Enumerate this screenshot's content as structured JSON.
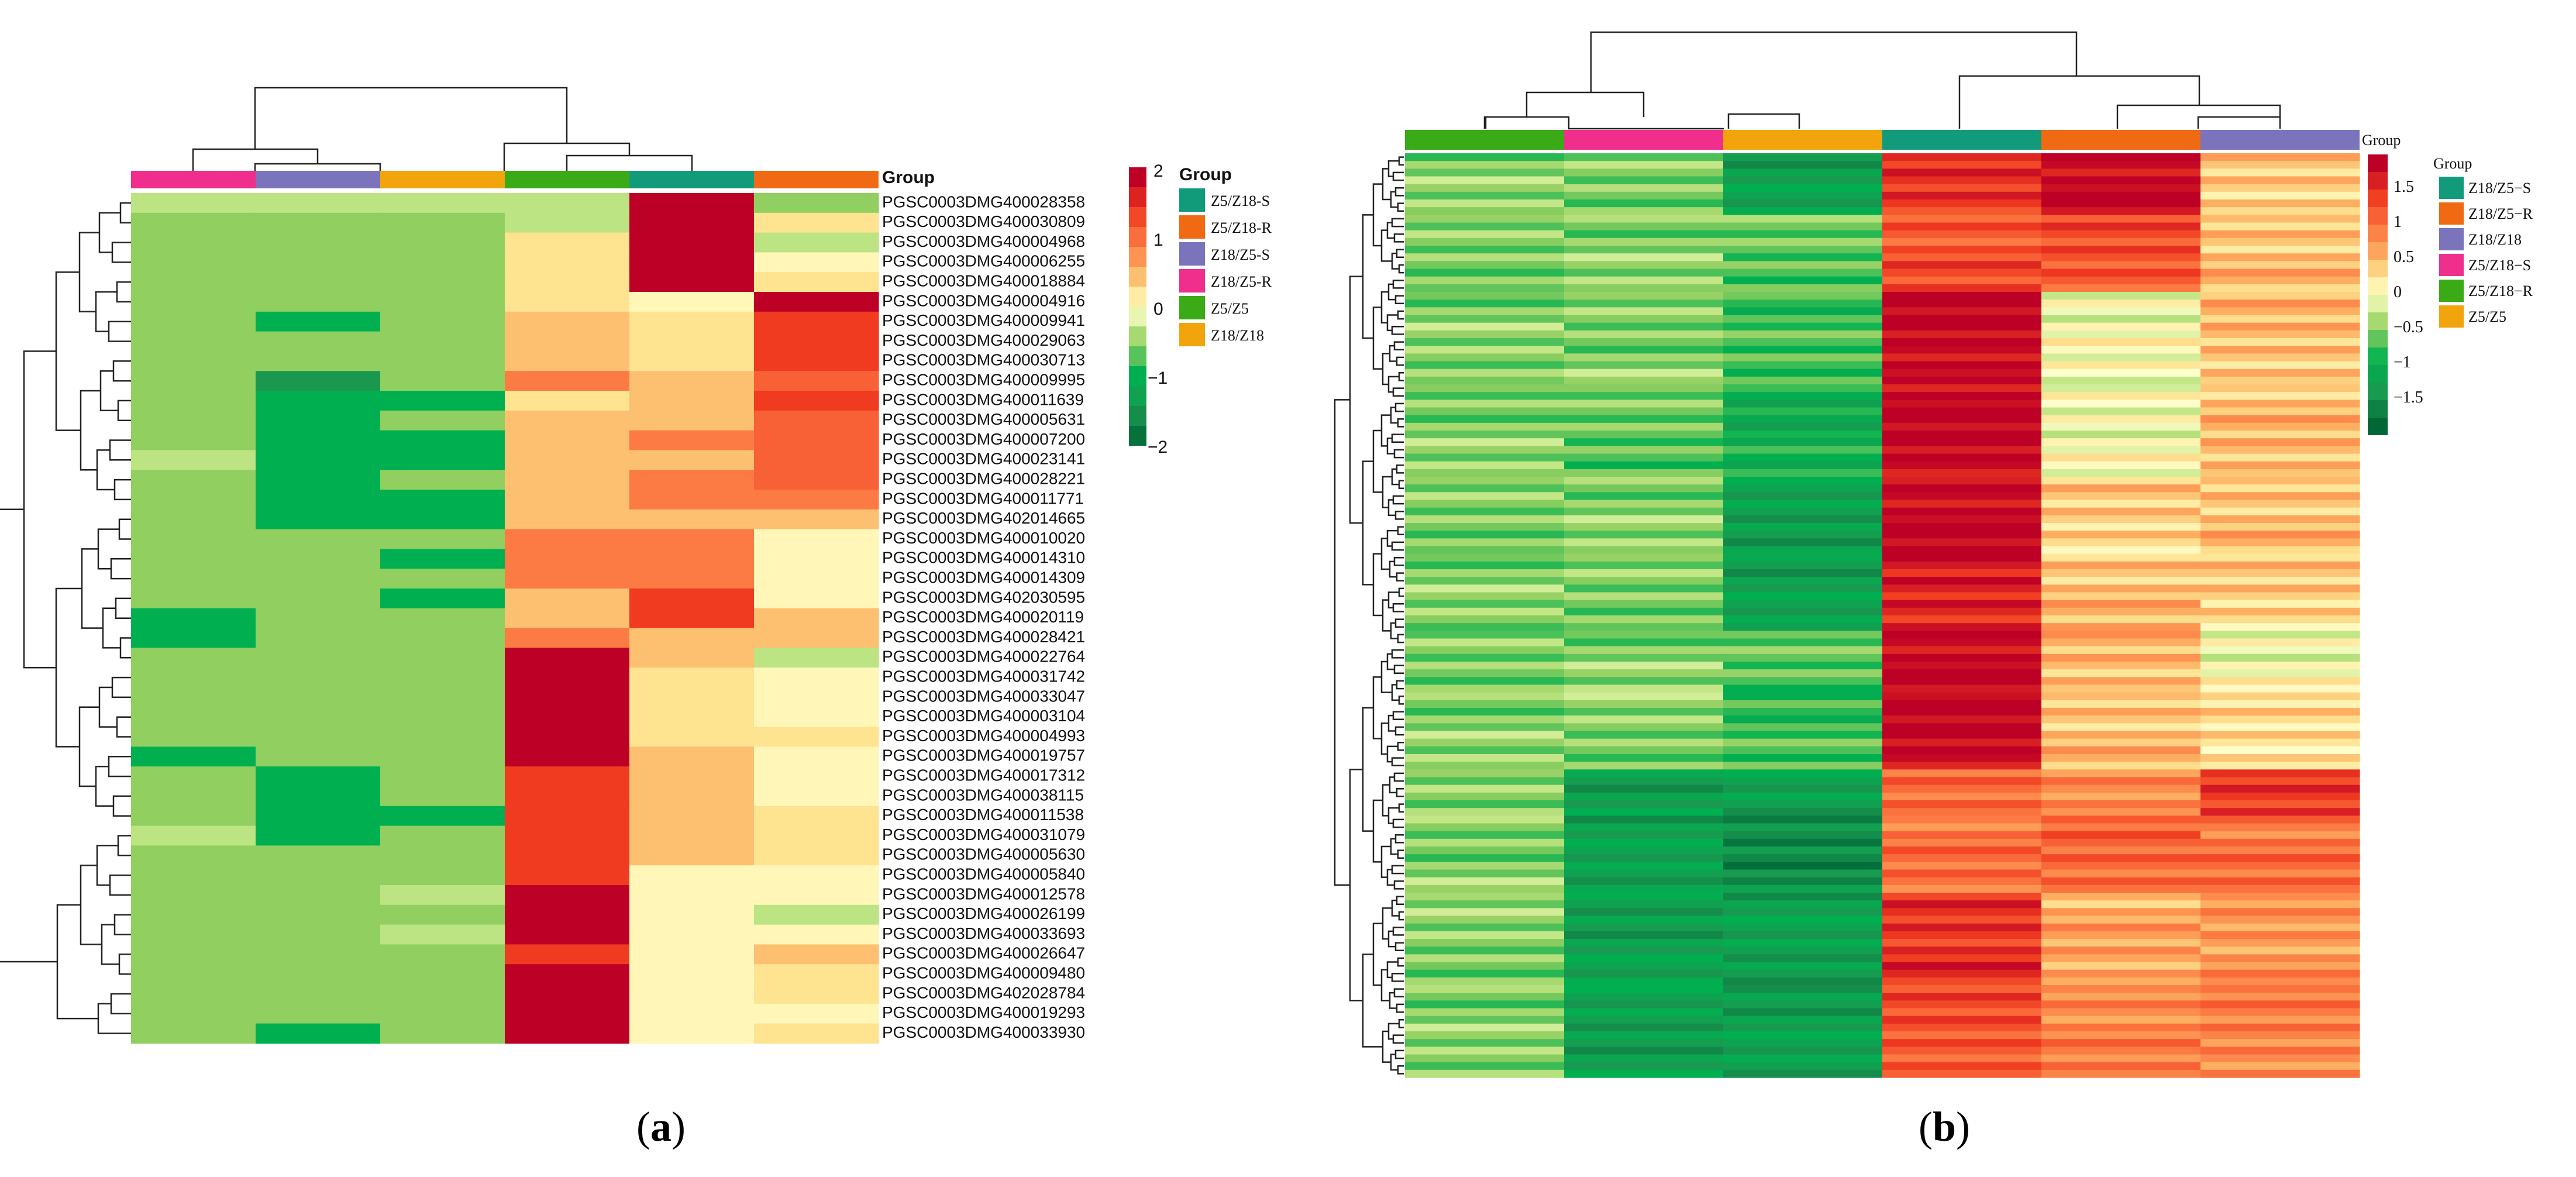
{
  "panel_a": {
    "label_open": "(",
    "label_letter": "a",
    "label_close": ")",
    "group_header": "Group",
    "column_order": [
      "Z18/Z5-R",
      "Z18/Z5-S",
      "Z18/Z18",
      "Z5/Z5",
      "Z5/Z18-S",
      "Z5/Z18-R"
    ],
    "legend_title": "Group",
    "legend": [
      {
        "label": "Z5/Z18-S",
        "color": "#129b7a"
      },
      {
        "label": "Z5/Z18-R",
        "color": "#ef6a13"
      },
      {
        "label": "Z18/Z5-S",
        "color": "#7b73bb"
      },
      {
        "label": "Z18/Z5-R",
        "color": "#ef2f8b"
      },
      {
        "label": "Z5/Z5",
        "color": "#3aaa16"
      },
      {
        "label": "Z18/Z18",
        "color": "#f2a40d"
      }
    ],
    "scale_ticks": [
      "2",
      "1",
      "0",
      "−1",
      "−2"
    ]
  },
  "panel_b": {
    "label_open": "(",
    "label_letter": "b",
    "label_close": ")",
    "group_header": "Group",
    "column_order": [
      "Z5/Z18-R",
      "Z5/Z18-S",
      "Z5/Z5",
      "Z18/Z5-S",
      "Z18/Z5-R",
      "Z18/Z18"
    ],
    "legend_title": "Group",
    "legend": [
      {
        "label": "Z18/Z5−S",
        "color": "#129b7a"
      },
      {
        "label": "Z18/Z5−R",
        "color": "#ef6a13"
      },
      {
        "label": "Z18/Z18",
        "color": "#7b73bb"
      },
      {
        "label": "Z5/Z18−S",
        "color": "#ef2f8b"
      },
      {
        "label": "Z5/Z18−R",
        "color": "#3aaa16"
      },
      {
        "label": "Z5/Z5",
        "color": "#f2a40d"
      }
    ],
    "scale_ticks": [
      "1.5",
      "1",
      "0.5",
      "0",
      "−0.5",
      "−1",
      "−1.5"
    ]
  },
  "chart_data": [
    {
      "type": "heatmap",
      "title": "",
      "columns": [
        "Z18/Z5-R",
        "Z18/Z5-S",
        "Z18/Z18",
        "Z5/Z5",
        "Z5/Z18-S",
        "Z5/Z18-R"
      ],
      "rows": [
        "PGSC0003DMG400028358",
        "PGSC0003DMG400030809",
        "PGSC0003DMG400004968",
        "PGSC0003DMG400006255",
        "PGSC0003DMG400018884",
        "PGSC0003DMG400004916",
        "PGSC0003DMG400009941",
        "PGSC0003DMG400029063",
        "PGSC0003DMG400030713",
        "PGSC0003DMG400009995",
        "PGSC0003DMG400011639",
        "PGSC0003DMG400005631",
        "PGSC0003DMG400007200",
        "PGSC0003DMG400023141",
        "PGSC0003DMG400028221",
        "PGSC0003DMG400011771",
        "PGSC0003DMG402014665",
        "PGSC0003DMG400010020",
        "PGSC0003DMG400014310",
        "PGSC0003DMG400014309",
        "PGSC0003DMG402030595",
        "PGSC0003DMG400020119",
        "PGSC0003DMG400028421",
        "PGSC0003DMG400022764",
        "PGSC0003DMG400031742",
        "PGSC0003DMG400033047",
        "PGSC0003DMG400003104",
        "PGSC0003DMG400004993",
        "PGSC0003DMG400019757",
        "PGSC0003DMG400017312",
        "PGSC0003DMG400038115",
        "PGSC0003DMG400011538",
        "PGSC0003DMG400031079",
        "PGSC0003DMG400005630",
        "PGSC0003DMG400005840",
        "PGSC0003DMG400012578",
        "PGSC0003DMG400026199",
        "PGSC0003DMG400033693",
        "PGSC0003DMG400026647",
        "PGSC0003DMG400009480",
        "PGSC0003DMG402028784",
        "PGSC0003DMG400019293",
        "PGSC0003DMG400033930"
      ],
      "values": [
        [
          -0.3,
          -0.3,
          -0.3,
          -0.3,
          2,
          -0.5
        ],
        [
          -0.5,
          -0.5,
          -0.5,
          -0.3,
          2,
          0.3
        ],
        [
          -0.5,
          -0.5,
          -0.5,
          0.3,
          2,
          -0.3
        ],
        [
          -0.5,
          -0.5,
          -0.5,
          0.3,
          2,
          0.1
        ],
        [
          -0.5,
          -0.5,
          -0.5,
          0.3,
          2,
          0.3
        ],
        [
          -0.5,
          -0.5,
          -0.5,
          0.3,
          0.1,
          2
        ],
        [
          -0.5,
          -1,
          -0.5,
          0.5,
          0.3,
          1.5
        ],
        [
          -0.5,
          -0.5,
          -0.5,
          0.5,
          0.3,
          1.5
        ],
        [
          -0.5,
          -0.5,
          -0.5,
          0.5,
          0.3,
          1.5
        ],
        [
          -0.5,
          -1.5,
          -0.5,
          1,
          0.5,
          1.2
        ],
        [
          -0.5,
          -1,
          -1,
          0.3,
          0.5,
          1.5
        ],
        [
          -0.5,
          -1,
          -0.5,
          0.5,
          0.5,
          1.2
        ],
        [
          -0.5,
          -1,
          -1,
          0.5,
          1,
          1.2
        ],
        [
          -0.3,
          -1,
          -1,
          0.5,
          0.5,
          1.2
        ],
        [
          -0.5,
          -1,
          -0.5,
          0.5,
          1,
          1.2
        ],
        [
          -0.5,
          -1,
          -1,
          0.5,
          1,
          1
        ],
        [
          -0.5,
          -1,
          -1,
          0.5,
          0.5,
          0.5
        ],
        [
          -0.5,
          -0.5,
          -0.5,
          1,
          1,
          0.1
        ],
        [
          -0.5,
          -0.5,
          -1,
          1,
          1,
          0.1
        ],
        [
          -0.5,
          -0.5,
          -0.5,
          1,
          1,
          0.1
        ],
        [
          -0.5,
          -0.5,
          -1,
          0.5,
          1.5,
          0.1
        ],
        [
          -1,
          -0.5,
          -0.5,
          0.5,
          1.5,
          0.5
        ],
        [
          -1,
          -0.5,
          -0.5,
          1,
          0.5,
          0.5
        ],
        [
          -0.5,
          -0.5,
          -0.5,
          2,
          0.5,
          -0.3
        ],
        [
          -0.5,
          -0.5,
          -0.5,
          2,
          0.3,
          0.1
        ],
        [
          -0.5,
          -0.5,
          -0.5,
          2,
          0.3,
          0.1
        ],
        [
          -0.5,
          -0.5,
          -0.5,
          2,
          0.3,
          0.1
        ],
        [
          -0.5,
          -0.5,
          -0.5,
          2,
          0.3,
          0.3
        ],
        [
          -1,
          -0.5,
          -0.5,
          2,
          0.5,
          0.1
        ],
        [
          -0.5,
          -1,
          -0.5,
          1.5,
          0.5,
          0.1
        ],
        [
          -0.5,
          -1,
          -0.5,
          1.5,
          0.5,
          0.1
        ],
        [
          -0.5,
          -1,
          -1,
          1.5,
          0.5,
          0.3
        ],
        [
          -0.3,
          -1,
          -0.5,
          1.5,
          0.5,
          0.3
        ],
        [
          -0.5,
          -0.5,
          -0.5,
          1.5,
          0.5,
          0.3
        ],
        [
          -0.5,
          -0.5,
          -0.5,
          1.5,
          0.1,
          0.1
        ],
        [
          -0.5,
          -0.5,
          -0.3,
          2,
          0.1,
          0.1
        ],
        [
          -0.5,
          -0.5,
          -0.5,
          2,
          0.1,
          -0.3
        ],
        [
          -0.5,
          -0.5,
          -0.3,
          2,
          0.1,
          0.1
        ],
        [
          -0.5,
          -0.5,
          -0.5,
          1.5,
          0.1,
          0.5
        ],
        [
          -0.5,
          -0.5,
          -0.5,
          2,
          0.1,
          0.3
        ],
        [
          -0.5,
          -0.5,
          -0.5,
          2,
          0.1,
          0.3
        ],
        [
          -0.5,
          -0.5,
          -0.5,
          2,
          0.1,
          0.1
        ],
        [
          -0.5,
          -1,
          -0.5,
          2,
          0.1,
          0.3
        ]
      ],
      "color_scale": {
        "min": -2,
        "max": 2,
        "low": "#006837",
        "mid": "#ffffcc",
        "high": "#bd0026"
      },
      "legend": "right",
      "cluster_rows": true,
      "cluster_cols": true
    },
    {
      "type": "heatmap",
      "title": "",
      "columns": [
        "Z5/Z18-R",
        "Z5/Z18-S",
        "Z5/Z5",
        "Z18/Z5-S",
        "Z18/Z5-R",
        "Z18/Z18"
      ],
      "row_count": 120,
      "blocks": [
        {
          "rows": 8,
          "values": [
            -0.4,
            -0.4,
            -1.0,
            1.2,
            1.5,
            0.3
          ]
        },
        {
          "rows": 10,
          "values": [
            -0.4,
            -0.4,
            -0.5,
            1.0,
            1.0,
            0.4
          ]
        },
        {
          "rows": 12,
          "values": [
            -0.4,
            -0.4,
            -0.6,
            1.5,
            0.0,
            0.4
          ]
        },
        {
          "rows": 12,
          "values": [
            -0.4,
            -0.5,
            -0.8,
            1.5,
            0.0,
            0.4
          ]
        },
        {
          "rows": 10,
          "values": [
            -0.4,
            -0.4,
            -1.0,
            1.5,
            0.3,
            0.4
          ]
        },
        {
          "rows": 10,
          "values": [
            -0.4,
            -0.4,
            -1.0,
            1.3,
            0.4,
            0.3
          ]
        },
        {
          "rows": 8,
          "values": [
            -0.4,
            -0.4,
            -0.5,
            1.5,
            0.4,
            0.0
          ]
        },
        {
          "rows": 10,
          "values": [
            -0.4,
            -0.4,
            -0.6,
            1.5,
            0.4,
            0.2
          ]
        },
        {
          "rows": 6,
          "values": [
            -0.4,
            -1.0,
            -1.0,
            0.9,
            0.6,
            1.2
          ]
        },
        {
          "rows": 10,
          "values": [
            -0.4,
            -1.0,
            -1.2,
            0.8,
            0.9,
            0.8
          ]
        },
        {
          "rows": 12,
          "values": [
            -0.4,
            -1.0,
            -1.0,
            1.2,
            0.5,
            0.6
          ]
        },
        {
          "rows": 12,
          "values": [
            -0.4,
            -1.0,
            -1.0,
            1.0,
            0.7,
            0.7
          ]
        }
      ],
      "color_scale": {
        "min": -1.5,
        "max": 1.5,
        "low": "#006837",
        "mid": "#ffffcc",
        "high": "#bd0026"
      },
      "legend": "right",
      "cluster_rows": true,
      "cluster_cols": true
    }
  ]
}
